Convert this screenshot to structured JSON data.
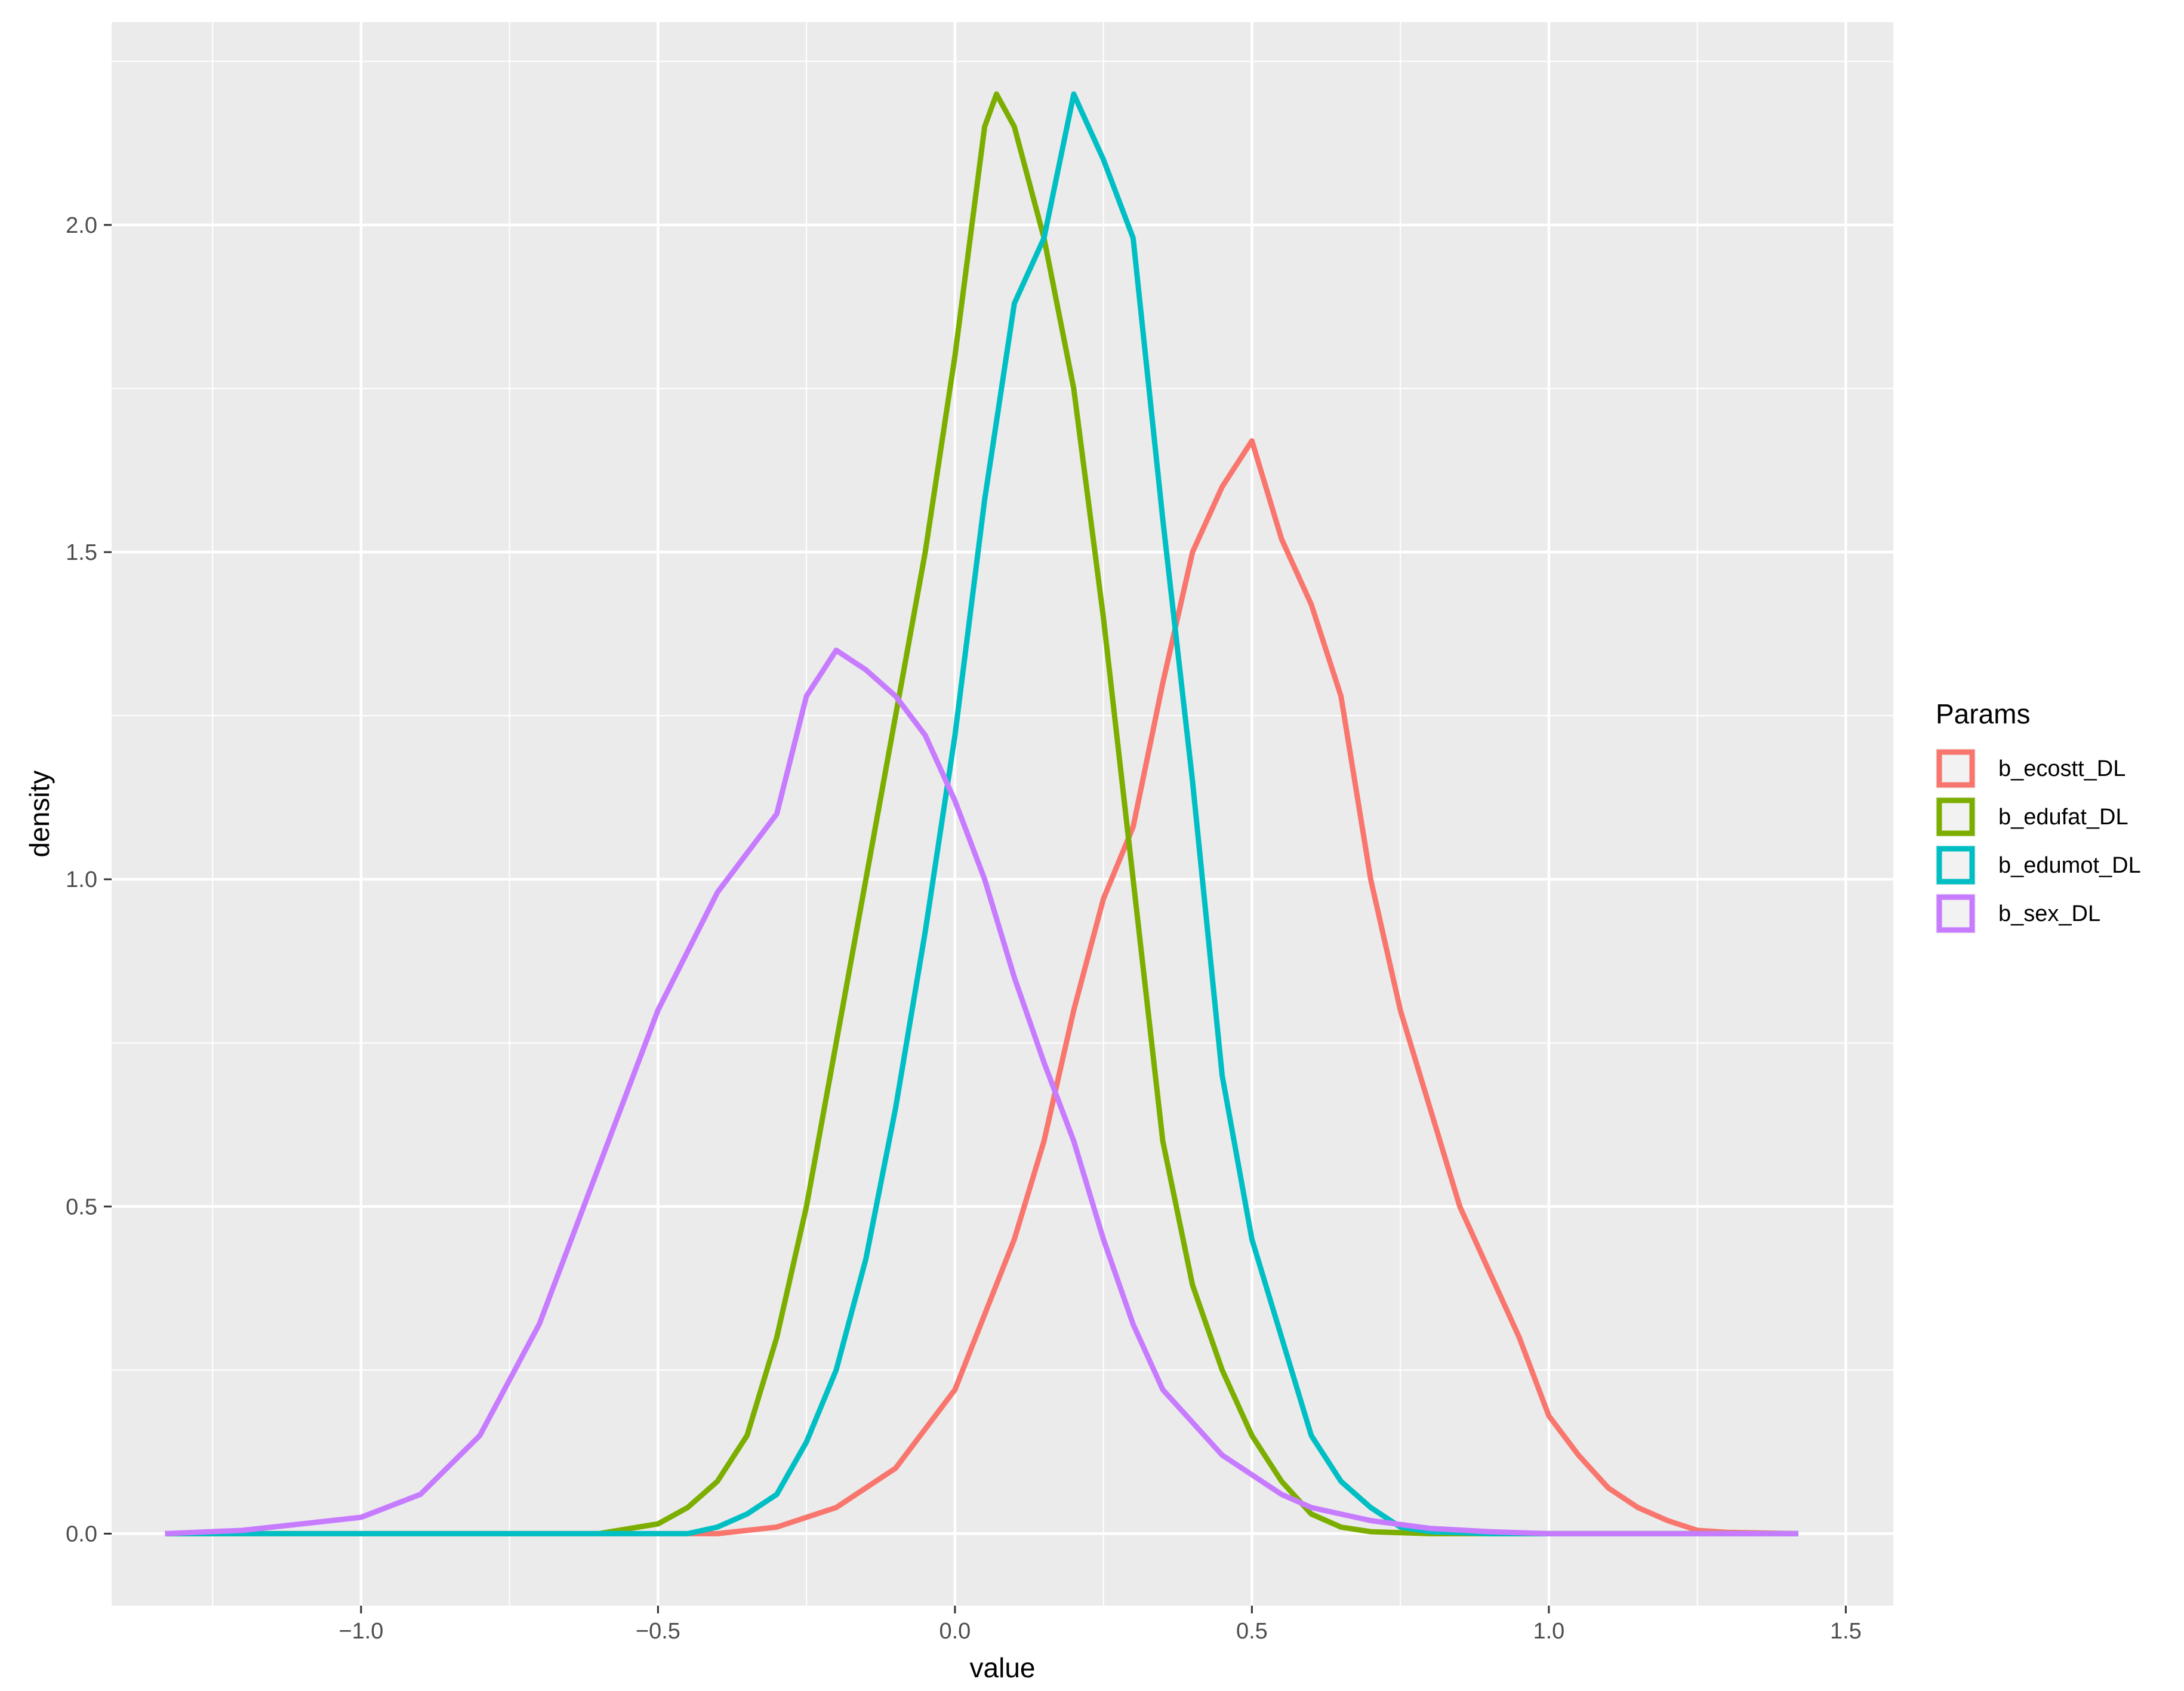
{
  "chart_data": {
    "type": "line",
    "title": "",
    "xlabel": "value",
    "ylabel": "density",
    "xlim": [
      -1.42,
      1.58
    ],
    "ylim": [
      -0.11,
      2.31
    ],
    "x_ticks": [
      -1.0,
      -0.5,
      0.0,
      0.5,
      1.0,
      1.5
    ],
    "x_tick_labels": [
      "−1.0",
      "−0.5",
      "0.0",
      "0.5",
      "1.0",
      "1.5"
    ],
    "y_ticks": [
      0.0,
      0.5,
      1.0,
      1.5,
      2.0
    ],
    "y_tick_labels": [
      "0.0",
      "0.5",
      "1.0",
      "1.5",
      "2.0"
    ],
    "grid": true,
    "background": "#EBEBEB",
    "gridline_color": "#FFFFFF",
    "legend": {
      "title": "Params",
      "placement": "right"
    },
    "series": [
      {
        "name": "b_ecostt_DL",
        "color": "#F8766D",
        "points": [
          [
            -1.33,
            0
          ],
          [
            -0.4,
            0
          ],
          [
            -0.3,
            0.01
          ],
          [
            -0.2,
            0.04
          ],
          [
            -0.1,
            0.1
          ],
          [
            0,
            0.22
          ],
          [
            0.1,
            0.45
          ],
          [
            0.15,
            0.6
          ],
          [
            0.2,
            0.8
          ],
          [
            0.25,
            0.97
          ],
          [
            0.3,
            1.08
          ],
          [
            0.35,
            1.3
          ],
          [
            0.4,
            1.5
          ],
          [
            0.45,
            1.6
          ],
          [
            0.5,
            1.67
          ],
          [
            0.55,
            1.52
          ],
          [
            0.6,
            1.42
          ],
          [
            0.65,
            1.28
          ],
          [
            0.7,
            1.0
          ],
          [
            0.75,
            0.8
          ],
          [
            0.8,
            0.65
          ],
          [
            0.85,
            0.5
          ],
          [
            0.9,
            0.4
          ],
          [
            0.95,
            0.3
          ],
          [
            1.0,
            0.18
          ],
          [
            1.05,
            0.12
          ],
          [
            1.1,
            0.07
          ],
          [
            1.15,
            0.04
          ],
          [
            1.2,
            0.02
          ],
          [
            1.25,
            0.005
          ],
          [
            1.3,
            0.002
          ],
          [
            1.42,
            0
          ]
        ]
      },
      {
        "name": "b_edufat_DL",
        "color": "#7CAE00",
        "points": [
          [
            -1.33,
            0
          ],
          [
            -0.6,
            0
          ],
          [
            -0.5,
            0.015
          ],
          [
            -0.45,
            0.04
          ],
          [
            -0.4,
            0.08
          ],
          [
            -0.35,
            0.15
          ],
          [
            -0.3,
            0.3
          ],
          [
            -0.25,
            0.5
          ],
          [
            -0.2,
            0.75
          ],
          [
            -0.15,
            1.0
          ],
          [
            -0.1,
            1.25
          ],
          [
            -0.05,
            1.5
          ],
          [
            0,
            1.8
          ],
          [
            0.05,
            2.15
          ],
          [
            0.07,
            2.2
          ],
          [
            0.1,
            2.15
          ],
          [
            0.15,
            1.98
          ],
          [
            0.2,
            1.75
          ],
          [
            0.25,
            1.4
          ],
          [
            0.3,
            1.0
          ],
          [
            0.35,
            0.6
          ],
          [
            0.4,
            0.38
          ],
          [
            0.45,
            0.25
          ],
          [
            0.5,
            0.15
          ],
          [
            0.55,
            0.08
          ],
          [
            0.6,
            0.03
          ],
          [
            0.65,
            0.01
          ],
          [
            0.7,
            0.003
          ],
          [
            0.8,
            0
          ],
          [
            1.42,
            0
          ]
        ]
      },
      {
        "name": "b_edumot_DL",
        "color": "#00BFC4",
        "points": [
          [
            -1.33,
            0
          ],
          [
            -0.45,
            0
          ],
          [
            -0.4,
            0.01
          ],
          [
            -0.35,
            0.03
          ],
          [
            -0.3,
            0.06
          ],
          [
            -0.25,
            0.14
          ],
          [
            -0.2,
            0.25
          ],
          [
            -0.15,
            0.42
          ],
          [
            -0.1,
            0.65
          ],
          [
            -0.05,
            0.92
          ],
          [
            0,
            1.22
          ],
          [
            0.05,
            1.58
          ],
          [
            0.1,
            1.88
          ],
          [
            0.15,
            1.98
          ],
          [
            0.2,
            2.2
          ],
          [
            0.25,
            2.1
          ],
          [
            0.3,
            1.98
          ],
          [
            0.35,
            1.55
          ],
          [
            0.4,
            1.15
          ],
          [
            0.45,
            0.7
          ],
          [
            0.5,
            0.45
          ],
          [
            0.55,
            0.3
          ],
          [
            0.6,
            0.15
          ],
          [
            0.65,
            0.08
          ],
          [
            0.7,
            0.04
          ],
          [
            0.75,
            0.01
          ],
          [
            0.8,
            0.003
          ],
          [
            0.9,
            0
          ],
          [
            1.42,
            0
          ]
        ]
      },
      {
        "name": "b_sex_DL",
        "color": "#C77CFF",
        "points": [
          [
            -1.33,
            0
          ],
          [
            -1.2,
            0.005
          ],
          [
            -1.1,
            0.015
          ],
          [
            -1.0,
            0.025
          ],
          [
            -0.9,
            0.06
          ],
          [
            -0.8,
            0.15
          ],
          [
            -0.7,
            0.32
          ],
          [
            -0.6,
            0.56
          ],
          [
            -0.5,
            0.8
          ],
          [
            -0.4,
            0.98
          ],
          [
            -0.3,
            1.1
          ],
          [
            -0.25,
            1.28
          ],
          [
            -0.2,
            1.35
          ],
          [
            -0.15,
            1.32
          ],
          [
            -0.1,
            1.28
          ],
          [
            -0.05,
            1.22
          ],
          [
            0,
            1.12
          ],
          [
            0.05,
            1.0
          ],
          [
            0.1,
            0.85
          ],
          [
            0.15,
            0.72
          ],
          [
            0.2,
            0.6
          ],
          [
            0.25,
            0.45
          ],
          [
            0.3,
            0.32
          ],
          [
            0.35,
            0.22
          ],
          [
            0.4,
            0.17
          ],
          [
            0.45,
            0.12
          ],
          [
            0.5,
            0.09
          ],
          [
            0.55,
            0.06
          ],
          [
            0.6,
            0.04
          ],
          [
            0.7,
            0.02
          ],
          [
            0.8,
            0.008
          ],
          [
            0.9,
            0.003
          ],
          [
            1.0,
            0
          ],
          [
            1.42,
            0
          ]
        ]
      }
    ]
  }
}
